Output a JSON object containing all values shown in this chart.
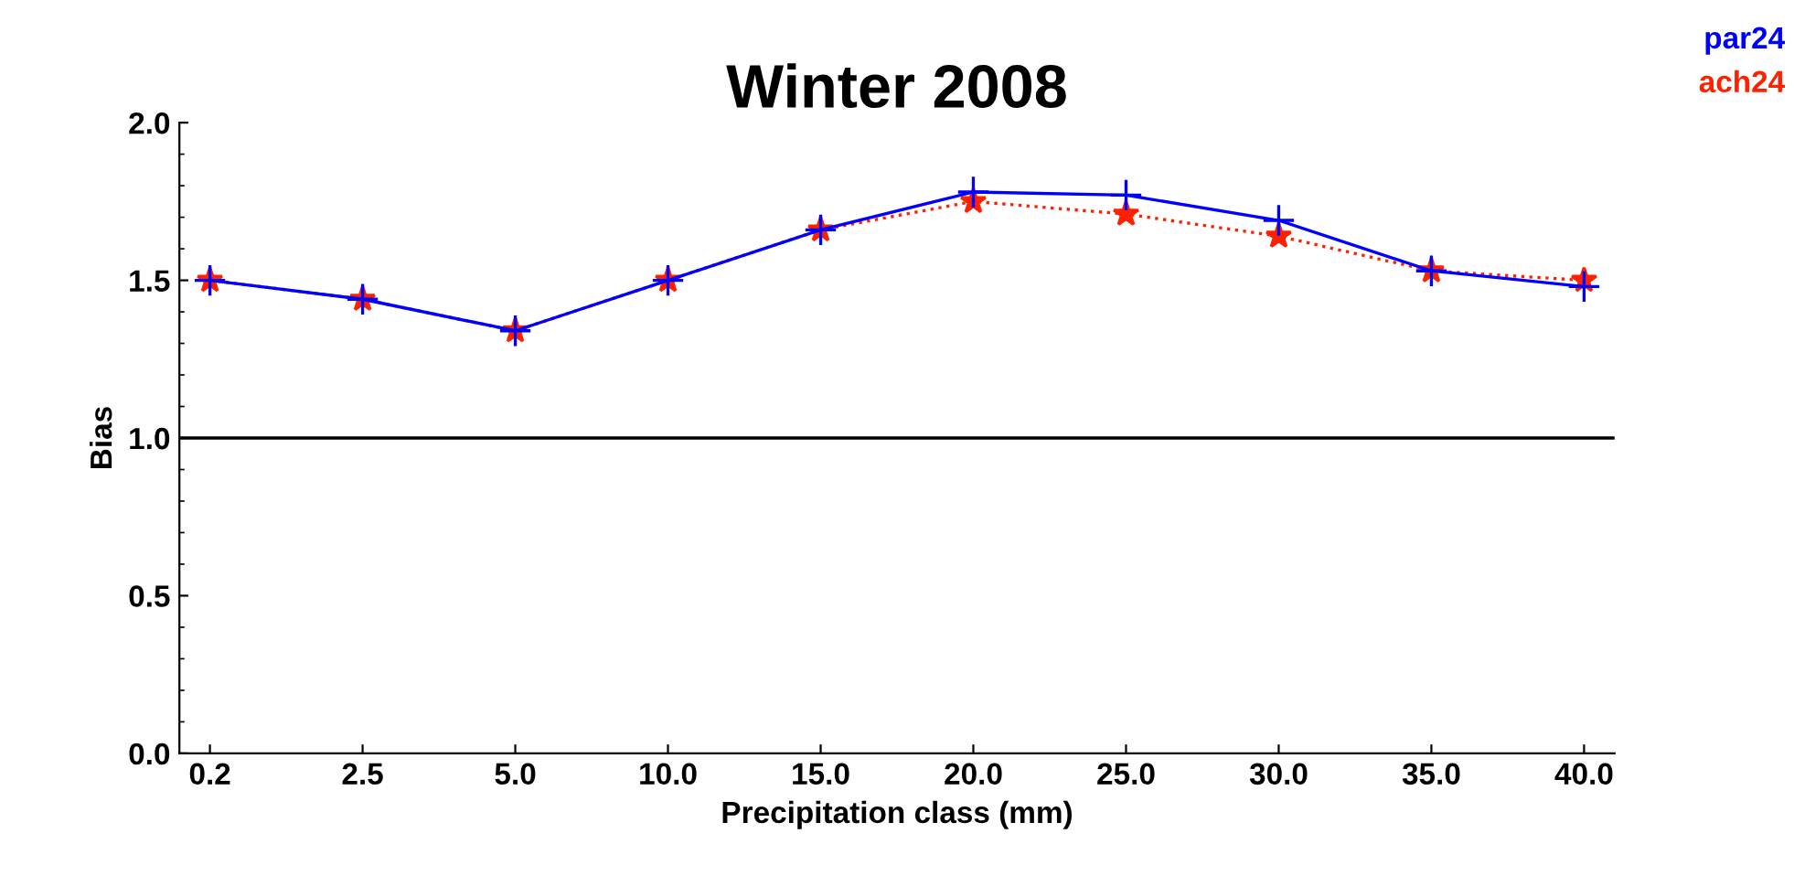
{
  "chart_data": {
    "type": "line",
    "title": "Winter 2008",
    "xlabel": "Precipitation class (mm)",
    "ylabel": "Bias",
    "categories": [
      "0.2",
      "2.5",
      "5.0",
      "10.0",
      "15.0",
      "20.0",
      "25.0",
      "30.0",
      "35.0",
      "40.0"
    ],
    "series": [
      {
        "name": "par24",
        "color": "#0000ff",
        "marker": "cross",
        "line_style": "solid",
        "values": [
          1.5,
          1.44,
          1.34,
          1.5,
          1.66,
          1.78,
          1.77,
          1.69,
          1.53,
          1.48
        ]
      },
      {
        "name": "ach24",
        "color": "#ff2000",
        "marker": "star",
        "line_style": "dotted",
        "values": [
          1.5,
          1.44,
          1.34,
          1.5,
          1.66,
          1.75,
          1.71,
          1.64,
          1.53,
          1.5
        ]
      }
    ],
    "ylim": [
      0,
      2.0
    ],
    "yticks": [
      {
        "value": 0,
        "label": "0.0"
      },
      {
        "value": 0.5,
        "label": "0.5"
      },
      {
        "value": 1.0,
        "label": "1.0"
      },
      {
        "value": 1.5,
        "label": "1.5"
      },
      {
        "value": 2.0,
        "label": "2.0"
      }
    ],
    "ref_lines": [
      {
        "axis": "y",
        "value": 1.0,
        "color": "#000000"
      }
    ],
    "grid": false,
    "legend": "top right"
  }
}
